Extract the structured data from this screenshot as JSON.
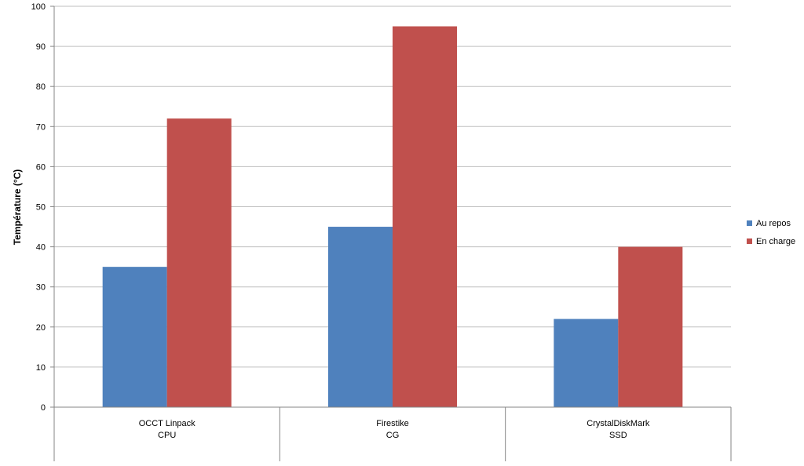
{
  "chart_data": {
    "type": "bar",
    "title": "",
    "xlabel": "",
    "ylabel": "Température (°C)",
    "ylim": [
      0,
      100
    ],
    "yticks": [
      0,
      10,
      20,
      30,
      40,
      50,
      60,
      70,
      80,
      90,
      100
    ],
    "grid": true,
    "legend_position": "right",
    "categories": [
      {
        "line1": "OCCT Linpack",
        "line2": "CPU"
      },
      {
        "line1": "Firestike",
        "line2": "CG"
      },
      {
        "line1": "CrystalDiskMark",
        "line2": "SSD"
      }
    ],
    "series": [
      {
        "name": "Au repos",
        "color": "#4F81BD",
        "values": [
          35,
          45,
          22
        ]
      },
      {
        "name": "En charge",
        "color": "#C0504D",
        "values": [
          72,
          95,
          40
        ]
      }
    ]
  }
}
